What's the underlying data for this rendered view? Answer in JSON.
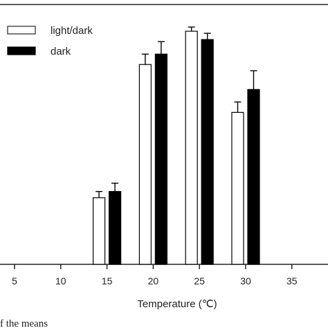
{
  "chart_data": {
    "type": "bar",
    "xlabel": "Temperature (℃)",
    "ylabel": "",
    "categories": [
      "5",
      "10",
      "15",
      "20",
      "25",
      "30",
      "35"
    ],
    "series": [
      {
        "name": "light/dark",
        "fill": "#ffffff",
        "values": [
          0,
          0,
          0.32,
          0.96,
          1.12,
          0.73,
          0
        ],
        "errors": [
          0,
          0,
          0.03,
          0.05,
          0.02,
          0.05,
          0
        ]
      },
      {
        "name": "dark",
        "fill": "#000000",
        "values": [
          0,
          0,
          0.35,
          1.01,
          1.08,
          0.84,
          0
        ],
        "errors": [
          0,
          0,
          0.04,
          0.06,
          0.03,
          0.09,
          0
        ]
      }
    ],
    "ylim": [
      0,
      1.25
    ],
    "legend_position": "top-left",
    "grid": false
  },
  "caption_fragment": "f the means"
}
